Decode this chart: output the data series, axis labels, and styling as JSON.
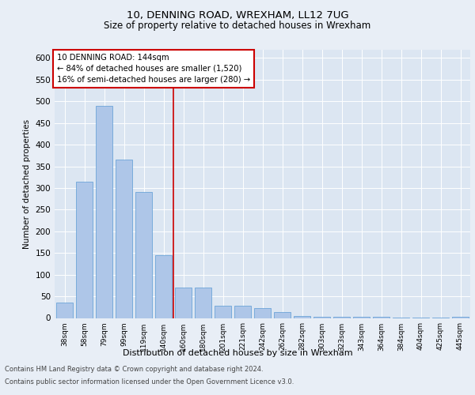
{
  "title1": "10, DENNING ROAD, WREXHAM, LL12 7UG",
  "title2": "Size of property relative to detached houses in Wrexham",
  "xlabel": "Distribution of detached houses by size in Wrexham",
  "ylabel": "Number of detached properties",
  "categories": [
    "38sqm",
    "58sqm",
    "79sqm",
    "99sqm",
    "119sqm",
    "140sqm",
    "160sqm",
    "180sqm",
    "201sqm",
    "221sqm",
    "242sqm",
    "262sqm",
    "282sqm",
    "303sqm",
    "323sqm",
    "343sqm",
    "364sqm",
    "384sqm",
    "404sqm",
    "425sqm",
    "445sqm"
  ],
  "values": [
    35,
    315,
    490,
    365,
    290,
    145,
    70,
    70,
    28,
    28,
    22,
    13,
    5,
    3,
    2,
    2,
    2,
    1,
    1,
    1,
    2
  ],
  "bar_color": "#aec6e8",
  "bar_edge_color": "#5b9bd5",
  "bar_width": 0.85,
  "vline_x": 5.5,
  "vline_color": "#cc0000",
  "annotation_text": "10 DENNING ROAD: 144sqm\n← 84% of detached houses are smaller (1,520)\n16% of semi-detached houses are larger (280) →",
  "annotation_box_color": "#ffffff",
  "annotation_box_edge_color": "#cc0000",
  "ylim": [
    0,
    620
  ],
  "yticks": [
    0,
    50,
    100,
    150,
    200,
    250,
    300,
    350,
    400,
    450,
    500,
    550,
    600
  ],
  "background_color": "#e8eef6",
  "plot_bg_color": "#dce6f2",
  "footer1": "Contains HM Land Registry data © Crown copyright and database right 2024.",
  "footer2": "Contains public sector information licensed under the Open Government Licence v3.0."
}
